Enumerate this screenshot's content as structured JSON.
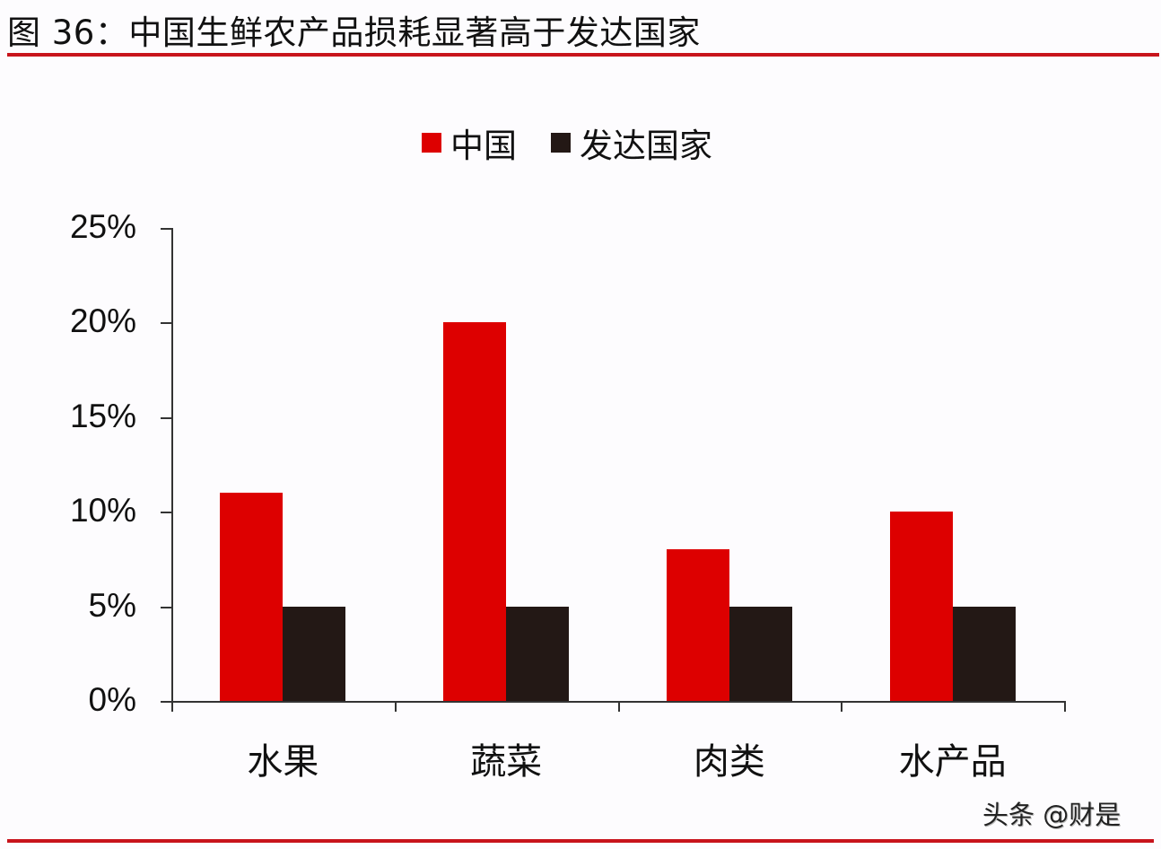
{
  "header": {
    "title": "图 36：中国生鲜农产品损耗显著高于发达国家"
  },
  "legend": [
    {
      "label": "中国",
      "color": "#dd0000"
    },
    {
      "label": "发达国家",
      "color": "#231815"
    }
  ],
  "watermark": "头条 @财是",
  "chart_data": {
    "type": "bar",
    "title": "中国生鲜农产品损耗显著高于发达国家",
    "figure_label": "图 36",
    "categories": [
      "水果",
      "蔬菜",
      "肉类",
      "水产品"
    ],
    "series": [
      {
        "name": "中国",
        "color": "#dd0000",
        "values": [
          0.11,
          0.2,
          0.08,
          0.1
        ]
      },
      {
        "name": "发达国家",
        "color": "#231815",
        "values": [
          0.05,
          0.05,
          0.05,
          0.05
        ]
      }
    ],
    "xlabel": "",
    "ylabel": "",
    "ylim": [
      0,
      0.25
    ],
    "yticks": [
      "0%",
      "5%",
      "10%",
      "15%",
      "20%",
      "25%"
    ],
    "ytick_values": [
      0,
      0.05,
      0.1,
      0.15,
      0.2,
      0.25
    ],
    "grid": false,
    "legend_position": "top"
  }
}
